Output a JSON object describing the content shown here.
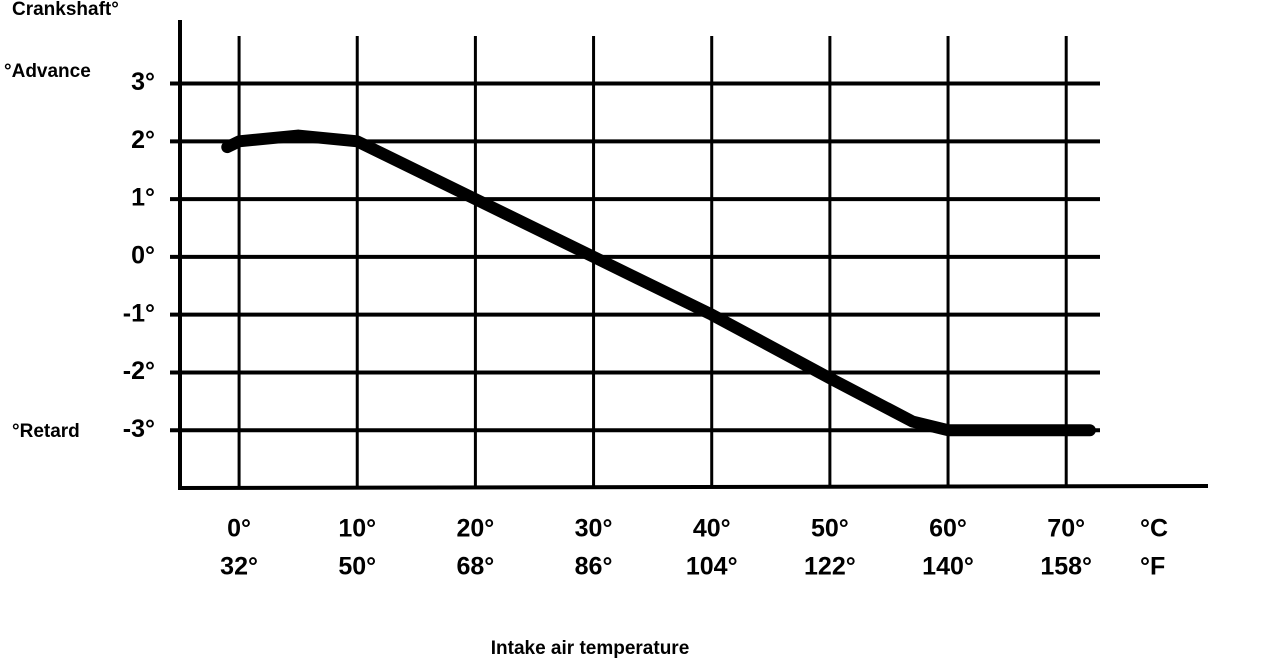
{
  "chart_data": {
    "type": "line",
    "y_label_top": "Crankshaft°",
    "y_label_advance": "°Advance",
    "y_label_retard": "°Retard",
    "x_label": "Intake air temperature",
    "x_unit": "°C",
    "x2_unit": "°F",
    "grid": true,
    "xlim": [
      -5,
      82
    ],
    "xticks": [
      {
        "value": 0,
        "label": "0°"
      },
      {
        "value": 10,
        "label": "10°"
      },
      {
        "value": 20,
        "label": "20°"
      },
      {
        "value": 30,
        "label": "30°"
      },
      {
        "value": 40,
        "label": "40°"
      },
      {
        "value": 50,
        "label": "50°"
      },
      {
        "value": 60,
        "label": "60°"
      },
      {
        "value": 70,
        "label": "70°"
      }
    ],
    "x2lim": [
      23,
      179.6
    ],
    "x2ticks": [
      {
        "value": 32,
        "label": "32°"
      },
      {
        "value": 50,
        "label": "50°"
      },
      {
        "value": 68,
        "label": "68°"
      },
      {
        "value": 86,
        "label": "86°"
      },
      {
        "value": 104,
        "label": "104°"
      },
      {
        "value": 122,
        "label": "122°"
      },
      {
        "value": 140,
        "label": "140°"
      },
      {
        "value": 158,
        "label": "158°"
      }
    ],
    "ylim": [
      -4,
      4.1
    ],
    "yticks": [
      {
        "value": 3,
        "label": "3°"
      },
      {
        "value": 2,
        "label": "2°"
      },
      {
        "value": 1,
        "label": "1°"
      },
      {
        "value": 0,
        "label": "0°"
      },
      {
        "value": -1,
        "label": "-1°"
      },
      {
        "value": -2,
        "label": "-2°"
      },
      {
        "value": -3,
        "label": "-3°"
      }
    ],
    "series": [
      {
        "color": "#000000",
        "x": [
          -1,
          0,
          5,
          10,
          20,
          30,
          40,
          50,
          57,
          60,
          72
        ],
        "values": [
          1.9,
          2.0,
          2.1,
          2.0,
          1.0,
          0,
          -1,
          -2.1,
          -2.85,
          -3,
          -3
        ]
      }
    ]
  }
}
